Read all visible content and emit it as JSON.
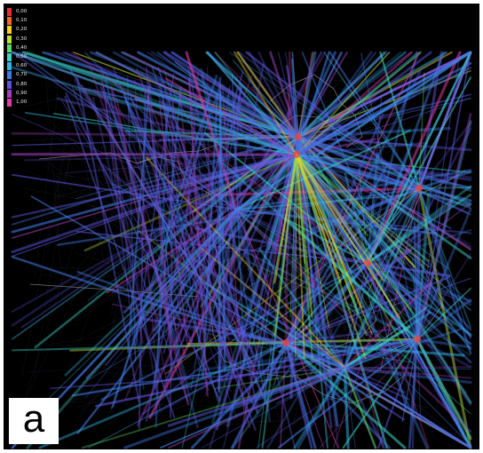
{
  "legend": {
    "entries": [
      {
        "label": "0,00",
        "color": "#e8302c"
      },
      {
        "label": "0,10",
        "color": "#f36a23"
      },
      {
        "label": "0,20",
        "color": "#f6d41a"
      },
      {
        "label": "0,30",
        "color": "#bde432"
      },
      {
        "label": "0,40",
        "color": "#5ed86c"
      },
      {
        "label": "0,50",
        "color": "#38d6c4"
      },
      {
        "label": "0,60",
        "color": "#2fb8e6"
      },
      {
        "label": "0,70",
        "color": "#3e7be6"
      },
      {
        "label": "0,80",
        "color": "#5a55dd"
      },
      {
        "label": "0,90",
        "color": "#a040c0"
      },
      {
        "label": "1,00",
        "color": "#e03ba8"
      }
    ]
  },
  "panel_label": "a",
  "colors": {
    "background": "#000000",
    "border": "#ffffff",
    "outline": "#c8c8c8",
    "hub_highlight": "#ff3c2a"
  }
}
